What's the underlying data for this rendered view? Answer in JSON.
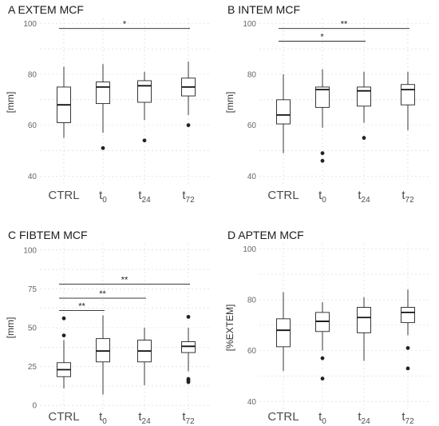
{
  "chart_data": [
    {
      "type": "box",
      "title": "A EXTEM MCF",
      "ylabel": "[mm]",
      "ylim": [
        36,
        102
      ],
      "yticks": [
        40,
        60,
        80,
        100
      ],
      "categories": [
        {
          "main": "CTRL",
          "sub": ""
        },
        {
          "main": "t",
          "sub": "0"
        },
        {
          "main": "t",
          "sub": "24"
        },
        {
          "main": "t",
          "sub": "72"
        }
      ],
      "boxes": [
        {
          "low": 55,
          "q1": 61,
          "median": 68,
          "q3": 75,
          "high": 83,
          "outliers": []
        },
        {
          "low": 57,
          "q1": 68.5,
          "median": 75,
          "q3": 77,
          "high": 84,
          "outliers": [
            51
          ]
        },
        {
          "low": 62,
          "q1": 69,
          "median": 75.5,
          "q3": 77.5,
          "high": 81,
          "outliers": [
            54
          ]
        },
        {
          "low": 64,
          "q1": 71.5,
          "median": 75,
          "q3": 78.5,
          "high": 85,
          "outliers": [
            60
          ]
        }
      ],
      "significance": [
        {
          "from": 0,
          "to": 3,
          "y": 98,
          "label": "*"
        }
      ]
    },
    {
      "type": "box",
      "title": "B INTEM MCF",
      "ylabel": "[mm]",
      "ylim": [
        36,
        102
      ],
      "yticks": [
        40,
        60,
        80,
        100
      ],
      "categories": [
        {
          "main": "CTRL",
          "sub": ""
        },
        {
          "main": "t",
          "sub": "0"
        },
        {
          "main": "t",
          "sub": "24"
        },
        {
          "main": "t",
          "sub": "72"
        }
      ],
      "boxes": [
        {
          "low": 49,
          "q1": 60.5,
          "median": 64,
          "q3": 70,
          "high": 80,
          "outliers": []
        },
        {
          "low": 59,
          "q1": 67,
          "median": 74,
          "q3": 75,
          "high": 82,
          "outliers": [
            49,
            46
          ]
        },
        {
          "low": 61,
          "q1": 67.5,
          "median": 73.5,
          "q3": 75,
          "high": 81,
          "outliers": [
            55
          ]
        },
        {
          "low": 58,
          "q1": 68,
          "median": 74,
          "q3": 76,
          "high": 81,
          "outliers": []
        }
      ],
      "significance": [
        {
          "from": 0,
          "to": 3,
          "y": 98,
          "label": "**"
        },
        {
          "from": 0,
          "to": 2,
          "y": 93,
          "label": "*"
        }
      ]
    },
    {
      "type": "box",
      "title": "C FIBTEM MCF",
      "ylabel": "[mm]",
      "ylim": [
        -4,
        104
      ],
      "yticks": [
        0,
        25,
        50,
        75,
        100
      ],
      "categories": [
        {
          "main": "CTRL",
          "sub": ""
        },
        {
          "main": "t",
          "sub": "0"
        },
        {
          "main": "t",
          "sub": "24"
        },
        {
          "main": "t",
          "sub": "72"
        }
      ],
      "boxes": [
        {
          "low": 11,
          "q1": 18.5,
          "median": 23,
          "q3": 27.5,
          "high": 42,
          "outliers": [
            56,
            45
          ]
        },
        {
          "low": 7,
          "q1": 28,
          "median": 35,
          "q3": 43,
          "high": 58,
          "outliers": []
        },
        {
          "low": 13,
          "q1": 28,
          "median": 35,
          "q3": 42,
          "high": 50,
          "outliers": []
        },
        {
          "low": 22,
          "q1": 34,
          "median": 38,
          "q3": 41,
          "high": 50,
          "outliers": [
            57,
            17,
            16,
            15
          ]
        }
      ],
      "significance": [
        {
          "from": 0,
          "to": 3,
          "y": 78,
          "label": "**"
        },
        {
          "from": 0,
          "to": 2,
          "y": 69,
          "label": "**"
        },
        {
          "from": 0,
          "to": 1,
          "y": 61,
          "label": "**"
        }
      ]
    },
    {
      "type": "box",
      "title": "D APTEM MCF",
      "ylabel": "[%EXTEM]",
      "ylim": [
        36,
        102
      ],
      "yticks": [
        40,
        60,
        80,
        100
      ],
      "categories": [
        {
          "main": "CTRL",
          "sub": ""
        },
        {
          "main": "t",
          "sub": "0"
        },
        {
          "main": "t",
          "sub": "24"
        },
        {
          "main": "t",
          "sub": "72"
        }
      ],
      "boxes": [
        {
          "low": 52,
          "q1": 61.5,
          "median": 68,
          "q3": 72.5,
          "high": 83,
          "outliers": []
        },
        {
          "low": 60,
          "q1": 67.5,
          "median": 71.5,
          "q3": 75,
          "high": 79,
          "outliers": [
            57,
            49
          ]
        },
        {
          "low": 56,
          "q1": 67,
          "median": 73,
          "q3": 77,
          "high": 81,
          "outliers": []
        },
        {
          "low": 66,
          "q1": 71,
          "median": 75,
          "q3": 77,
          "high": 84,
          "outliers": [
            61,
            53
          ]
        }
      ],
      "significance": []
    }
  ]
}
